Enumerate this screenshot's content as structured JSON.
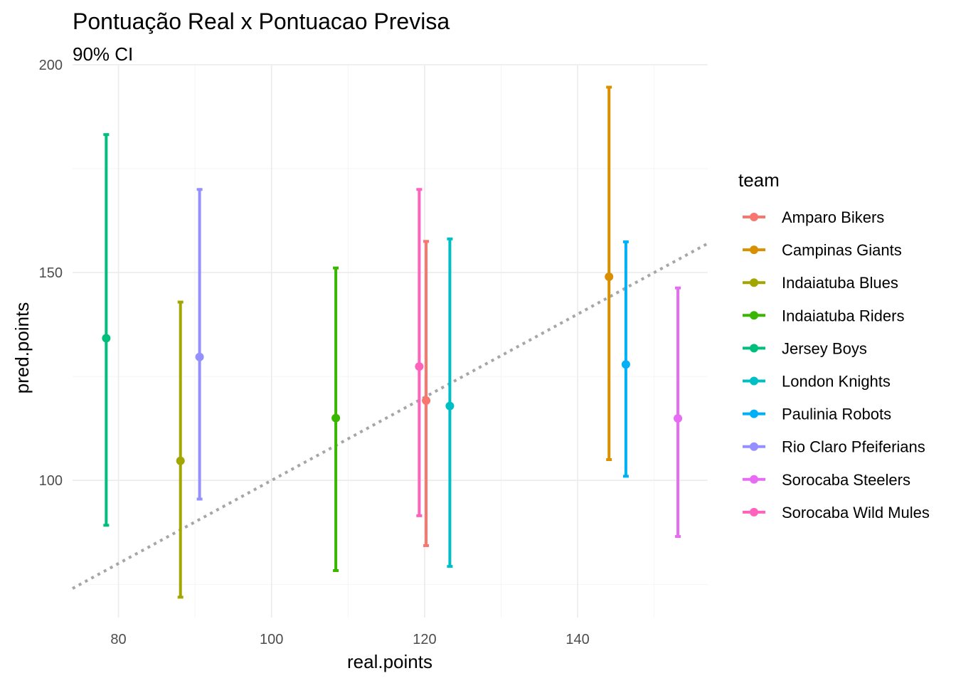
{
  "chart_data": {
    "type": "errorbar",
    "title": "Pontuação Real x Pontuacao Previsa",
    "subtitle": "90% CI",
    "xlabel": "real.points",
    "ylabel": "pred.points",
    "xlim": [
      74,
      157
    ],
    "ylim": [
      67,
      200
    ],
    "x_ticks": [
      80,
      100,
      120,
      140
    ],
    "y_ticks": [
      100,
      150,
      200
    ],
    "x_tick_labels": [
      "80",
      "100",
      "120",
      "140"
    ],
    "y_tick_labels": [
      "100",
      "150",
      "200"
    ],
    "reference_line": {
      "type": "identity",
      "style": "dotted",
      "color": "#a6a6a6"
    },
    "legend_title": "team",
    "legend_position": "right",
    "series": [
      {
        "name": "Amparo Bikers",
        "color": "#F8766D",
        "x": 120.2,
        "y": 119.2,
        "lower": 84.3,
        "upper": 157.5
      },
      {
        "name": "Campinas Giants",
        "color": "#D89000",
        "x": 144.1,
        "y": 149.0,
        "lower": 105.0,
        "upper": 194.6
      },
      {
        "name": "Indaiatuba Blues",
        "color": "#A3A500",
        "x": 88.1,
        "y": 104.7,
        "lower": 71.9,
        "upper": 142.9
      },
      {
        "name": "Indaiatuba Riders",
        "color": "#39B600",
        "x": 108.4,
        "y": 115.0,
        "lower": 78.3,
        "upper": 151.1
      },
      {
        "name": "Jersey Boys",
        "color": "#00BF7D",
        "x": 78.4,
        "y": 134.2,
        "lower": 89.2,
        "upper": 183.2
      },
      {
        "name": "London Knights",
        "color": "#00BFC4",
        "x": 123.3,
        "y": 117.9,
        "lower": 79.3,
        "upper": 158.1
      },
      {
        "name": "Paulinia Robots",
        "color": "#00B0F6",
        "x": 146.3,
        "y": 127.9,
        "lower": 101.0,
        "upper": 157.4
      },
      {
        "name": "Rio Claro Pfeiferians",
        "color": "#9590FF",
        "x": 90.6,
        "y": 129.7,
        "lower": 95.5,
        "upper": 170.0
      },
      {
        "name": "Sorocaba Steelers",
        "color": "#E76BF3",
        "x": 153.1,
        "y": 114.9,
        "lower": 86.5,
        "upper": 146.3
      },
      {
        "name": "Sorocaba Wild Mules",
        "color": "#FF62BC",
        "x": 119.3,
        "y": 127.4,
        "lower": 91.5,
        "upper": 170.0
      }
    ]
  }
}
